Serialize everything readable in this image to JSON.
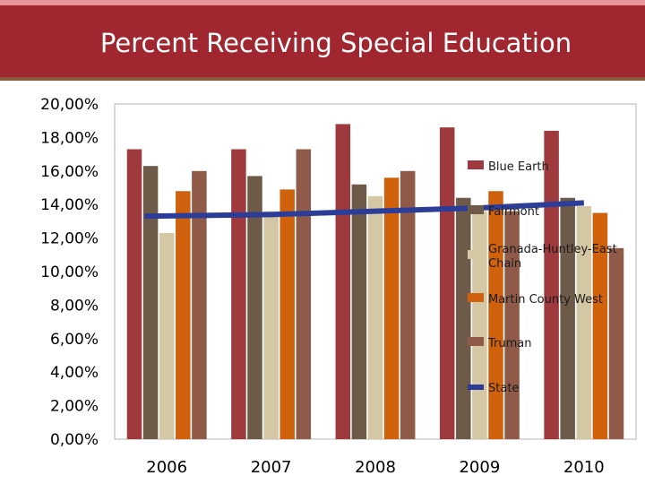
{
  "chart_data": {
    "type": "bar",
    "title": "Percent Receiving Special Education",
    "categories": [
      "2006",
      "2007",
      "2008",
      "2009",
      "2010"
    ],
    "ylim": [
      0,
      20
    ],
    "ytick_labels": [
      "0,00%",
      "2,00%",
      "4,00%",
      "6,00%",
      "8,00%",
      "10,00%",
      "12,00%",
      "14,00%",
      "16,00%",
      "18,00%",
      "20,00%"
    ],
    "series": [
      {
        "name": "Blue Earth",
        "type": "bar",
        "color": "#9e3a3e",
        "values": [
          17.3,
          17.3,
          18.8,
          18.6,
          18.4
        ]
      },
      {
        "name": "Fairmont",
        "type": "bar",
        "color": "#6e5a48",
        "values": [
          16.3,
          15.7,
          15.2,
          14.4,
          14.4
        ]
      },
      {
        "name": "Granada-Huntley-East Chain",
        "legend_lines": [
          "Granada-Huntley-East",
          "Chain"
        ],
        "type": "bar",
        "color": "#d4c7a4",
        "values": [
          12.3,
          13.6,
          14.5,
          13.6,
          13.9
        ]
      },
      {
        "name": "Martin County West",
        "type": "bar",
        "color": "#d0620e",
        "values": [
          14.8,
          14.9,
          15.6,
          14.8,
          13.5
        ]
      },
      {
        "name": "Truman",
        "type": "bar",
        "color": "#8f5b48",
        "values": [
          16.0,
          17.3,
          16.0,
          13.6,
          11.4
        ]
      },
      {
        "name": "State",
        "type": "line",
        "color": "#2b3d96",
        "values": [
          13.3,
          13.4,
          13.6,
          13.8,
          14.1
        ]
      }
    ]
  }
}
